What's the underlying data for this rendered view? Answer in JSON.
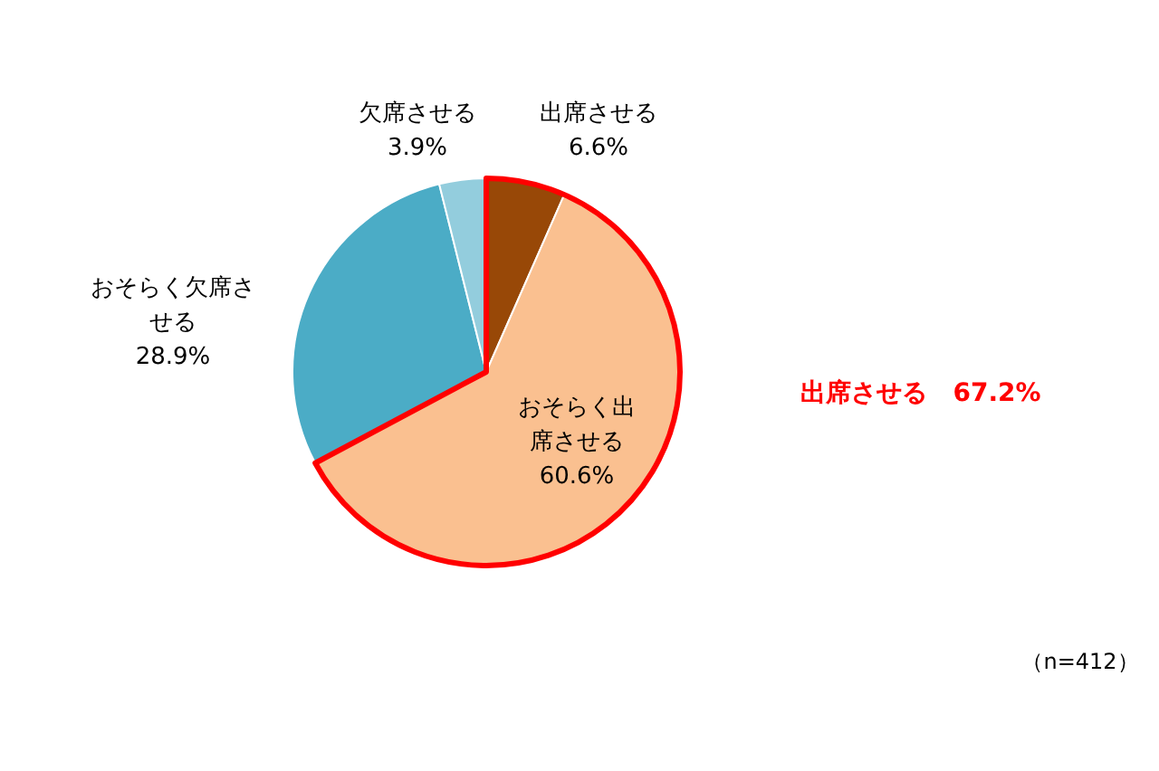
{
  "chart_data": {
    "type": "pie",
    "categories": [
      "出席させる",
      "おそらく出席させる",
      "おそらく欠席させる",
      "欠席させる"
    ],
    "values": [
      6.6,
      60.6,
      28.9,
      3.9
    ],
    "colors": [
      "#984807",
      "#fac090",
      "#4bacc6",
      "#93cddd"
    ],
    "value_labels": [
      "6.6%",
      "60.6%",
      "28.9%",
      "3.9%"
    ],
    "annotations": [
      "出席させる　67.2%",
      "（n=412）"
    ]
  }
}
